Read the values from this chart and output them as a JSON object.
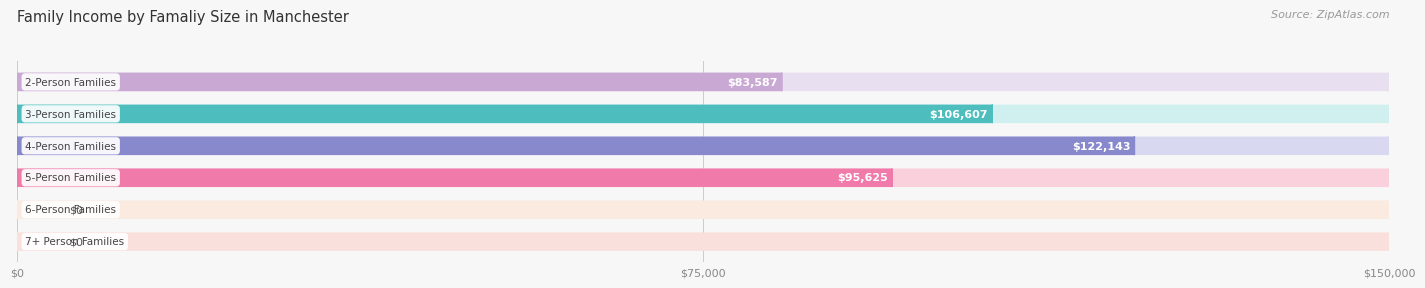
{
  "title": "Family Income by Famaliy Size in Manchester",
  "source": "Source: ZipAtlas.com",
  "categories": [
    "2-Person Families",
    "3-Person Families",
    "4-Person Families",
    "5-Person Families",
    "6-Person Families",
    "7+ Person Families"
  ],
  "values": [
    83587,
    106607,
    122143,
    95625,
    0,
    0
  ],
  "bar_colors": [
    "#c9a8d4",
    "#4dbdbd",
    "#8888cc",
    "#f07aaa",
    "#f5c89a",
    "#f5a8a0"
  ],
  "bar_bg_colors": [
    "#e8e0f0",
    "#d0f0f0",
    "#d8d8f0",
    "#fad0dc",
    "#faeae0",
    "#fae0dc"
  ],
  "value_labels": [
    "$83,587",
    "$106,607",
    "$122,143",
    "$95,625",
    "$0",
    "$0"
  ],
  "xlim": [
    0,
    150000
  ],
  "xtick_labels": [
    "$0",
    "$75,000",
    "$150,000"
  ],
  "xtick_vals": [
    0,
    75000,
    150000
  ],
  "background_color": "#f7f7f7",
  "bar_height": 0.58,
  "title_fontsize": 10.5,
  "source_fontsize": 8,
  "label_fontsize": 7.5,
  "value_fontsize": 8
}
